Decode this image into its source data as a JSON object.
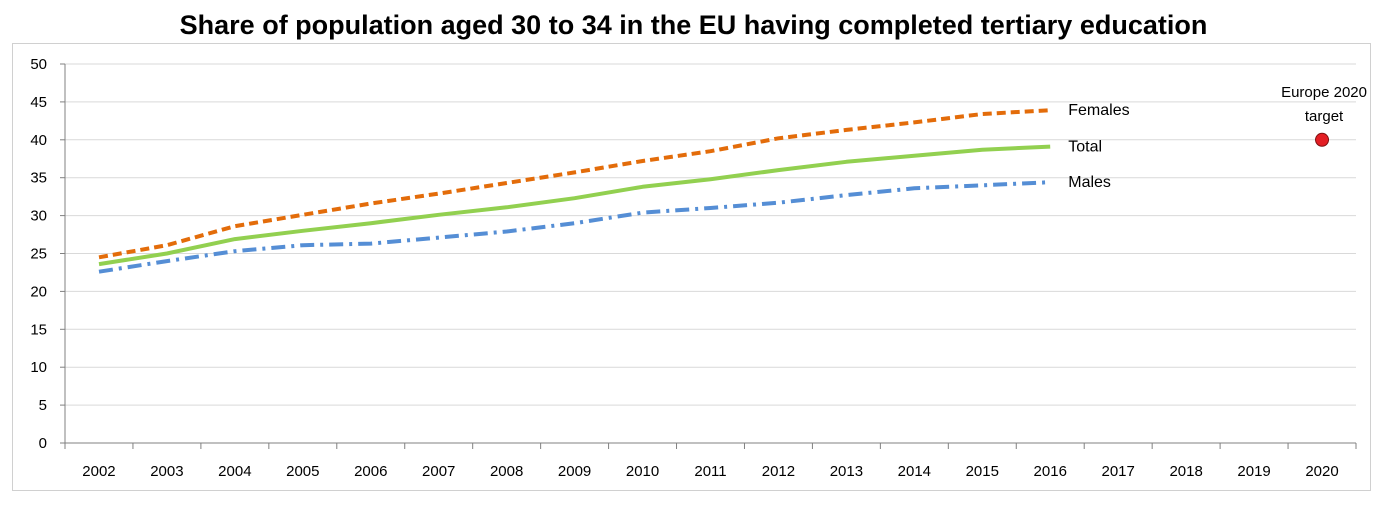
{
  "chart_data": {
    "type": "line",
    "title": "Share of population aged 30 to 34 in the EU having completed tertiary education",
    "xlabel": "",
    "ylabel": "",
    "categories": [
      "2002",
      "2003",
      "2004",
      "2005",
      "2006",
      "2007",
      "2008",
      "2009",
      "2010",
      "2011",
      "2012",
      "2013",
      "2014",
      "2015",
      "2016",
      "2017",
      "2018",
      "2019",
      "2020"
    ],
    "ylim": [
      0,
      50
    ],
    "yticks": [
      0,
      5,
      10,
      15,
      20,
      25,
      30,
      35,
      40,
      45,
      50
    ],
    "grid": true,
    "series": [
      {
        "name": "Females",
        "color": "#E36C0A",
        "dash": "dashed",
        "values": [
          24.5,
          26.1,
          28.6,
          30.1,
          31.6,
          32.9,
          34.3,
          35.7,
          37.2,
          38.5,
          40.2,
          41.3,
          42.3,
          43.4,
          43.9,
          null,
          null,
          null,
          null
        ]
      },
      {
        "name": "Total",
        "color": "#92D050",
        "dash": "solid",
        "values": [
          23.6,
          25.0,
          26.9,
          28.0,
          29.0,
          30.1,
          31.1,
          32.3,
          33.8,
          34.8,
          36.0,
          37.1,
          37.9,
          38.7,
          39.1,
          null,
          null,
          null,
          null
        ]
      },
      {
        "name": "Males",
        "color": "#558ED5",
        "dash": "dashdot",
        "values": [
          22.6,
          24.0,
          25.3,
          26.1,
          26.3,
          27.1,
          27.9,
          29.0,
          30.4,
          31.0,
          31.7,
          32.7,
          33.6,
          34.0,
          34.4,
          null,
          null,
          null,
          null
        ]
      }
    ],
    "annotations": [
      {
        "text_lines": [
          "Europe 2020",
          "target"
        ],
        "x": "2020",
        "y": 40,
        "marker_color": "#E31E24"
      }
    ]
  }
}
